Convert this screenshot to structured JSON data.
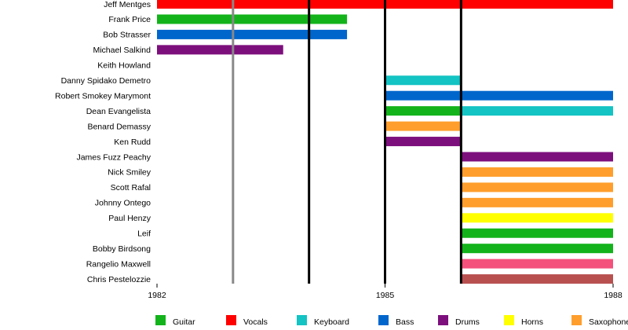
{
  "chart_data": {
    "type": "timeline",
    "categories": [
      "Jeff Mentges",
      "Frank Price",
      "Bob Strasser",
      "Michael Salkind",
      "Keith Howland",
      "Danny Spidako Demetro",
      "Robert Smokey Marymont",
      "Dean Evangelista",
      "Benard Demassy",
      "Ken Rudd",
      "James Fuzz Peachy",
      "Nick Smiley",
      "Scott Rafal",
      "Johnny Ontego",
      "Paul Henzy",
      "Leif",
      "Bobby Birdsong",
      "Rangelio Maxwell",
      "Chris Pestelozzie"
    ],
    "xlim": [
      1982,
      1988
    ],
    "xticks": [
      1982,
      1985,
      1988
    ],
    "markers": [
      {
        "value": 1983,
        "color": "#888888"
      },
      {
        "value": 1984,
        "color": "#000000"
      },
      {
        "value": 1985,
        "color": "#000000"
      },
      {
        "value": 1986,
        "color": "#000000"
      }
    ],
    "series": [
      {
        "name": "Guitar",
        "color": "#13b31b",
        "values": [
          null,
          [
            1982,
            1984.5
          ],
          null,
          null,
          null,
          null,
          null,
          [
            1985,
            1986
          ],
          null,
          null,
          null,
          null,
          null,
          null,
          null,
          [
            1986,
            1988
          ],
          [
            1986,
            1988
          ],
          null,
          null
        ]
      },
      {
        "name": "Vocals",
        "color": "#ff0000",
        "values": [
          [
            1982,
            1988
          ],
          null,
          null,
          null,
          null,
          null,
          null,
          null,
          null,
          null,
          null,
          null,
          null,
          null,
          null,
          null,
          null,
          null,
          null
        ]
      },
      {
        "name": "Keyboard",
        "color": "#14c3c3",
        "values": [
          null,
          null,
          null,
          null,
          null,
          [
            1985,
            1986
          ],
          null,
          [
            1986,
            1988
          ],
          null,
          null,
          null,
          null,
          null,
          null,
          null,
          null,
          null,
          null,
          null
        ]
      },
      {
        "name": "Bass",
        "color": "#0066cc",
        "values": [
          null,
          null,
          [
            1982,
            1984.5
          ],
          null,
          null,
          null,
          [
            1985,
            1988
          ],
          null,
          null,
          null,
          null,
          null,
          null,
          null,
          null,
          null,
          null,
          null,
          null
        ]
      },
      {
        "name": "Drums",
        "color": "#7d0f7d",
        "values": [
          null,
          null,
          null,
          [
            1982,
            1983.66
          ],
          null,
          null,
          null,
          null,
          null,
          [
            1985,
            1986
          ],
          [
            1986,
            1988
          ],
          null,
          null,
          null,
          null,
          null,
          null,
          null,
          null
        ]
      },
      {
        "name": "Horns",
        "color": "#ffff00",
        "values": [
          null,
          null,
          null,
          null,
          null,
          null,
          null,
          null,
          null,
          null,
          null,
          null,
          null,
          null,
          [
            1986,
            1988
          ],
          null,
          null,
          null,
          null
        ]
      },
      {
        "name": "Saxophone",
        "color": "#ff9e2c",
        "values": [
          null,
          null,
          null,
          null,
          null,
          null,
          null,
          null,
          [
            1985,
            1986
          ],
          null,
          null,
          [
            1986,
            1988
          ],
          [
            1986,
            1988
          ],
          [
            1986,
            1988
          ],
          null,
          null,
          null,
          null,
          null
        ]
      },
      {
        "color": "#f4517d",
        "values": [
          null,
          null,
          null,
          null,
          null,
          null,
          null,
          null,
          null,
          null,
          null,
          null,
          null,
          null,
          null,
          null,
          null,
          [
            1986,
            1988
          ],
          null
        ]
      },
      {
        "color": "#b95050",
        "values": [
          null,
          null,
          null,
          null,
          null,
          null,
          null,
          null,
          null,
          null,
          null,
          null,
          null,
          null,
          null,
          null,
          null,
          null,
          [
            1986,
            1988
          ]
        ]
      }
    ]
  }
}
